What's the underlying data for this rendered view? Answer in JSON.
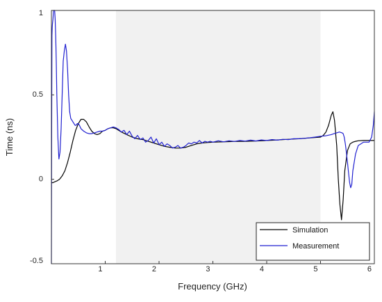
{
  "chart_data": {
    "type": "line",
    "title": "",
    "xlabel": "Frequency (GHz)",
    "ylabel": "Time (ns)",
    "xlim": [
      0,
      6
    ],
    "ylim": [
      -0.5,
      1
    ],
    "x_ticks": [
      "1",
      "2",
      "3",
      "4",
      "5",
      "6"
    ],
    "y_ticks": [
      "-0.5",
      "0",
      "0.5",
      "1"
    ],
    "grid": false,
    "legend_position": "bottom-right",
    "shaded_band": {
      "x_start": 1.2,
      "x_end": 5.0,
      "color": "#f1f1f1"
    },
    "series": [
      {
        "name": "Simulation",
        "color": "#000000",
        "x": [
          0,
          0.01,
          0.03,
          0.06,
          0.1,
          0.15,
          0.2,
          0.25,
          0.3,
          0.35,
          0.4,
          0.45,
          0.5,
          0.55,
          0.6,
          0.65,
          0.7,
          0.75,
          0.8,
          0.85,
          0.9,
          0.95,
          1.0,
          1.05,
          1.1,
          1.15,
          1.2,
          1.3,
          1.4,
          1.5,
          1.6,
          1.7,
          1.8,
          1.9,
          2.0,
          2.1,
          2.2,
          2.3,
          2.4,
          2.5,
          2.6,
          2.7,
          2.8,
          2.9,
          3.0,
          3.2,
          3.4,
          3.6,
          3.8,
          4.0,
          4.2,
          4.4,
          4.6,
          4.8,
          5.0,
          5.05,
          5.1,
          5.15,
          5.2,
          5.23,
          5.26,
          5.3,
          5.33,
          5.36,
          5.39,
          5.42,
          5.45,
          5.5,
          5.55,
          5.6,
          5.65,
          5.7,
          5.8,
          5.9,
          6.0
        ],
        "y": [
          -0.02,
          -0.02,
          -0.02,
          -0.015,
          -0.01,
          0.0,
          0.02,
          0.05,
          0.1,
          0.16,
          0.23,
          0.29,
          0.33,
          0.355,
          0.355,
          0.34,
          0.31,
          0.285,
          0.27,
          0.265,
          0.27,
          0.285,
          0.29,
          0.3,
          0.305,
          0.305,
          0.3,
          0.28,
          0.265,
          0.25,
          0.24,
          0.235,
          0.225,
          0.215,
          0.205,
          0.195,
          0.19,
          0.185,
          0.185,
          0.19,
          0.2,
          0.21,
          0.215,
          0.218,
          0.22,
          0.222,
          0.224,
          0.225,
          0.227,
          0.23,
          0.233,
          0.237,
          0.24,
          0.245,
          0.25,
          0.26,
          0.28,
          0.32,
          0.38,
          0.4,
          0.35,
          0.2,
          0.0,
          -0.15,
          -0.24,
          -0.12,
          0.05,
          0.17,
          0.21,
          0.22,
          0.225,
          0.228,
          0.23,
          0.23,
          0.23
        ]
      },
      {
        "name": "Measurement",
        "color": "#1f1fd0",
        "x": [
          0,
          0.005,
          0.01,
          0.015,
          0.02,
          0.03,
          0.04,
          0.05,
          0.06,
          0.07,
          0.08,
          0.09,
          0.1,
          0.12,
          0.14,
          0.16,
          0.18,
          0.2,
          0.22,
          0.24,
          0.26,
          0.28,
          0.3,
          0.32,
          0.34,
          0.36,
          0.38,
          0.4,
          0.42,
          0.44,
          0.46,
          0.48,
          0.5,
          0.52,
          0.55,
          0.6,
          0.65,
          0.7,
          0.75,
          0.8,
          0.85,
          0.9,
          0.95,
          1.0,
          1.05,
          1.1,
          1.15,
          1.2,
          1.25,
          1.3,
          1.35,
          1.4,
          1.45,
          1.5,
          1.55,
          1.6,
          1.65,
          1.7,
          1.75,
          1.8,
          1.85,
          1.9,
          1.95,
          2.0,
          2.05,
          2.1,
          2.15,
          2.2,
          2.25,
          2.3,
          2.35,
          2.4,
          2.45,
          2.5,
          2.55,
          2.6,
          2.65,
          2.7,
          2.75,
          2.8,
          2.85,
          2.9,
          2.95,
          3.0,
          3.1,
          3.2,
          3.3,
          3.4,
          3.5,
          3.6,
          3.7,
          3.8,
          3.9,
          4.0,
          4.1,
          4.2,
          4.3,
          4.4,
          4.5,
          4.6,
          4.7,
          4.8,
          4.9,
          5.0,
          5.1,
          5.2,
          5.25,
          5.3,
          5.35,
          5.4,
          5.42,
          5.44,
          5.46,
          5.48,
          5.5,
          5.52,
          5.54,
          5.56,
          5.58,
          5.6,
          5.65,
          5.7,
          5.8,
          5.9,
          5.95,
          5.98,
          6.0
        ],
        "y": [
          -0.5,
          0.3,
          0.85,
          0.9,
          0.92,
          0.95,
          1.0,
          1.0,
          1.0,
          0.95,
          0.85,
          0.7,
          0.5,
          0.25,
          0.12,
          0.16,
          0.3,
          0.5,
          0.7,
          0.76,
          0.8,
          0.76,
          0.65,
          0.5,
          0.4,
          0.36,
          0.35,
          0.34,
          0.33,
          0.32,
          0.32,
          0.33,
          0.33,
          0.32,
          0.3,
          0.285,
          0.275,
          0.27,
          0.27,
          0.275,
          0.28,
          0.285,
          0.285,
          0.29,
          0.3,
          0.305,
          0.31,
          0.305,
          0.295,
          0.28,
          0.29,
          0.265,
          0.285,
          0.255,
          0.24,
          0.26,
          0.235,
          0.245,
          0.22,
          0.23,
          0.25,
          0.215,
          0.24,
          0.205,
          0.22,
          0.195,
          0.21,
          0.2,
          0.185,
          0.19,
          0.2,
          0.185,
          0.19,
          0.2,
          0.215,
          0.21,
          0.22,
          0.215,
          0.23,
          0.215,
          0.225,
          0.22,
          0.225,
          0.22,
          0.228,
          0.222,
          0.228,
          0.224,
          0.23,
          0.226,
          0.232,
          0.227,
          0.233,
          0.23,
          0.235,
          0.232,
          0.237,
          0.235,
          0.24,
          0.24,
          0.243,
          0.246,
          0.25,
          0.255,
          0.258,
          0.265,
          0.27,
          0.275,
          0.28,
          0.275,
          0.27,
          0.25,
          0.21,
          0.16,
          0.1,
          0.04,
          -0.02,
          -0.05,
          -0.03,
          0.05,
          0.15,
          0.2,
          0.22,
          0.22,
          0.25,
          0.32,
          0.4
        ]
      }
    ]
  }
}
